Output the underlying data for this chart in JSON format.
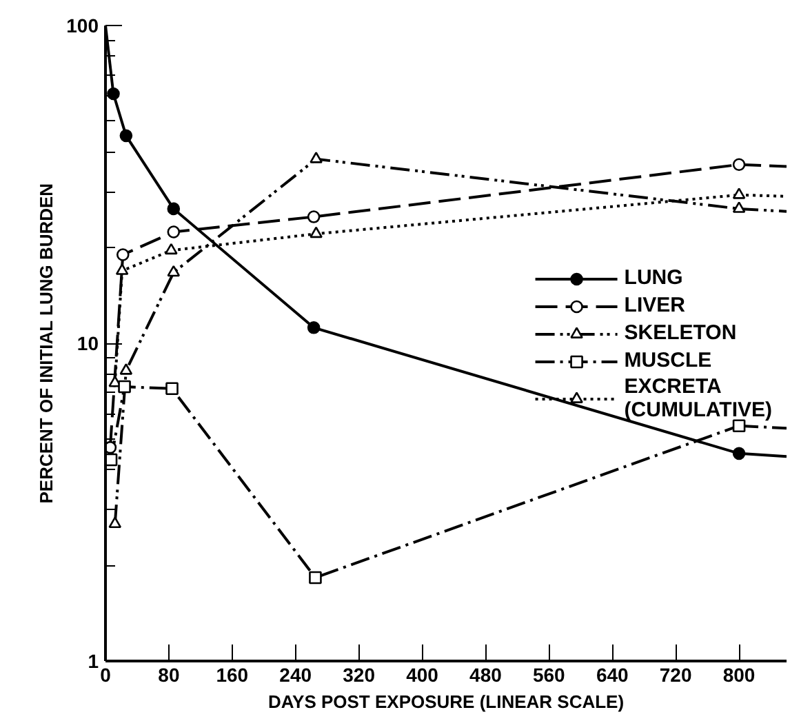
{
  "chart_data": {
    "type": "line",
    "xlabel": "DAYS POST EXPOSURE (LINEAR SCALE)",
    "ylabel": "PERCENT OF INITIAL LUNG BURDEN",
    "log": "y",
    "xlim": [
      0,
      860
    ],
    "ylim": [
      1,
      100
    ],
    "xticks": [
      0,
      80,
      160,
      240,
      320,
      400,
      480,
      560,
      640,
      720,
      800
    ],
    "yticks": [
      1,
      {
        "value": 2,
        "label": null
      },
      {
        "value": 3,
        "label": null
      },
      {
        "value": 4,
        "label": null
      },
      {
        "value": 5,
        "label": null
      },
      {
        "value": 6,
        "label": null
      },
      {
        "value": 7,
        "label": null
      },
      {
        "value": 8,
        "label": null
      },
      {
        "value": 9,
        "label": null
      },
      10,
      {
        "value": 20,
        "label": null
      },
      {
        "value": 30,
        "label": null
      },
      {
        "value": 40,
        "label": null
      },
      {
        "value": 50,
        "label": null
      },
      {
        "value": 60,
        "label": null
      },
      {
        "value": 70,
        "label": null
      },
      {
        "value": 80,
        "label": null
      },
      {
        "value": 90,
        "label": null
      },
      100
    ],
    "grid": false,
    "legend": "right",
    "series": [
      {
        "name": "LUNG",
        "color": "#000000",
        "line_style": "solid",
        "marker": "circle",
        "x": [
          10,
          26,
          86,
          263,
          800
        ],
        "values": [
          61,
          45,
          26.5,
          11.2,
          4.5
        ]
      },
      {
        "name": "LIVER",
        "color": "#000000",
        "line_style": "dashed",
        "marker": "open_circle",
        "x": [
          6,
          22,
          86,
          263,
          800
        ],
        "values": [
          4.7,
          19,
          22.4,
          25,
          36.5
        ]
      },
      {
        "name": "SKELETON",
        "color": "#000000",
        "line_style": "dashdotdot",
        "marker": "triangle",
        "x": [
          12,
          26,
          86,
          266,
          800
        ],
        "values": [
          2.7,
          8.2,
          16.7,
          38,
          26.5
        ]
      },
      {
        "name": "MUSCLE",
        "color": "#000000",
        "line_style": "dashdot",
        "marker": "square",
        "x": [
          7,
          24,
          84,
          265,
          800
        ],
        "values": [
          4.3,
          7.3,
          7.2,
          1.83,
          5.5
        ]
      },
      {
        "name": "EXCRETA\n(CUMULATIVE)",
        "color": "#000000",
        "line_style": "dotted",
        "marker": "triangle",
        "x": [
          12,
          21,
          83,
          266,
          800
        ],
        "values": [
          7.5,
          16.9,
          19.6,
          22.1,
          29.3
        ]
      },
      {
        "color": "#000000",
        "line_style": "solid",
        "marker": "none",
        "x": [
          0,
          10
        ],
        "values": [
          100,
          61
        ]
      },
      {
        "color": "#000000",
        "line_style": "solid",
        "marker": "none",
        "x": [
          800,
          860
        ],
        "values": [
          4.5,
          4.4
        ]
      },
      {
        "color": "#000000",
        "line_style": "dashed",
        "marker": "none",
        "x": [
          800,
          860
        ],
        "values": [
          36.5,
          36
        ]
      },
      {
        "color": "#000000",
        "line_style": "dashdotdot",
        "marker": "none",
        "x": [
          800,
          860
        ],
        "values": [
          26.5,
          26
        ]
      },
      {
        "color": "#000000",
        "line_style": "dashdot",
        "marker": "none",
        "x": [
          800,
          860
        ],
        "values": [
          5.5,
          5.4
        ]
      },
      {
        "color": "#000000",
        "line_style": "dotted",
        "marker": "none",
        "x": [
          800,
          860
        ],
        "values": [
          29.3,
          29
        ]
      }
    ]
  }
}
